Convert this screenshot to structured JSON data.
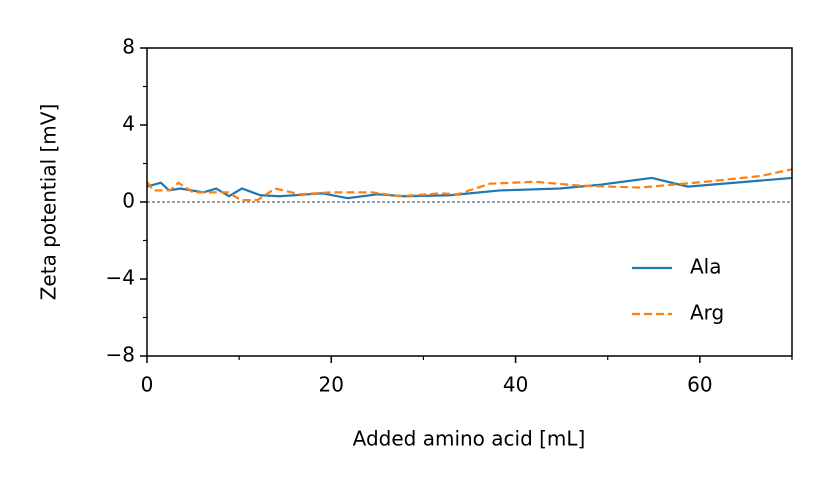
{
  "chart_data": {
    "type": "line",
    "x_label": "Added amino acid [mL]",
    "y_label": "Zeta potential [mV]",
    "xlim": [
      0,
      70
    ],
    "ylim": [
      -8,
      8
    ],
    "xticks": [
      0,
      20,
      40,
      60
    ],
    "xminorticks": [
      10,
      30,
      50,
      70
    ],
    "yticks": [
      {
        "value": -8,
        "label": "−8"
      },
      {
        "value": -4,
        "label": "−4"
      },
      0,
      4,
      8
    ],
    "yminorticks": [
      -6,
      -2,
      2,
      6
    ],
    "zero_line": true,
    "legend": "lower right",
    "series": [
      {
        "name": "Ala",
        "color": "#1f77b4",
        "dash": "solid",
        "x": [
          0,
          1.5,
          2.4,
          3.6,
          6.1,
          7.5,
          8.9,
          10.3,
          12.3,
          14.4,
          19,
          21.8,
          25,
          28,
          32.9,
          38.3,
          44.8,
          49.2,
          54.8,
          58.7,
          70
        ],
        "values": [
          0.8,
          1.0,
          0.6,
          0.7,
          0.5,
          0.7,
          0.3,
          0.7,
          0.35,
          0.3,
          0.45,
          0.2,
          0.4,
          0.3,
          0.35,
          0.6,
          0.7,
          0.9,
          1.25,
          0.8,
          1.25
        ]
      },
      {
        "name": "Arg",
        "color": "#ff7f0e",
        "dash": "dashed",
        "x": [
          0,
          0.7,
          2.5,
          3.4,
          5,
          6.8,
          8.8,
          10.2,
          12,
          13.9,
          16.6,
          19.9,
          24.4,
          27.5,
          31.8,
          33.7,
          37.2,
          42.1,
          47,
          53.5,
          60.6,
          66.6,
          70
        ],
        "values": [
          1.05,
          0.6,
          0.6,
          1.0,
          0.5,
          0.5,
          0.5,
          0.1,
          0.1,
          0.7,
          0.4,
          0.5,
          0.5,
          0.3,
          0.45,
          0.4,
          0.95,
          1.05,
          0.85,
          0.75,
          1.05,
          1.35,
          1.7
        ]
      }
    ]
  }
}
